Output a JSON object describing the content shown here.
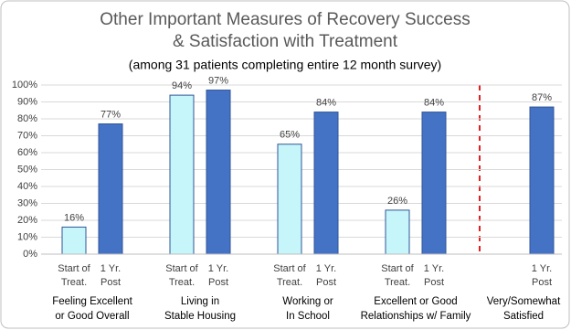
{
  "chart_data": {
    "type": "bar",
    "title": "Other Important Measures of Recovery Success & Satisfaction with Treatment",
    "subtitle": "(among 31 patients completing entire 12 month survey)",
    "categories": [
      "Feeling Excellent or Good Overall",
      "Living in Stable Housing",
      "Working or In School",
      "Excellent or Good Relationships w/ Family",
      "Very/Somewhat Satisfied"
    ],
    "series": [
      {
        "name": "Start of Treat.",
        "color": "#c6f5fa",
        "values": [
          16,
          94,
          65,
          26,
          null
        ],
        "value_labels": [
          "16%",
          "94%",
          "65%",
          "26%",
          null
        ]
      },
      {
        "name": "1 Yr. Post",
        "color": "#4472c4",
        "values": [
          77,
          97,
          84,
          84,
          87
        ],
        "value_labels": [
          "77%",
          "97%",
          "84%",
          "84%",
          "87%"
        ]
      }
    ],
    "ylim": [
      0,
      100
    ],
    "yticks": [
      {
        "value": 0,
        "label": "0%"
      },
      {
        "value": 10,
        "label": "10%"
      },
      {
        "value": 20,
        "label": "20%"
      },
      {
        "value": 30,
        "label": "30%"
      },
      {
        "value": 40,
        "label": "40%"
      },
      {
        "value": 50,
        "label": "50%"
      },
      {
        "value": 60,
        "label": "60%"
      },
      {
        "value": 70,
        "label": "70%"
      },
      {
        "value": 80,
        "label": "80%"
      },
      {
        "value": 90,
        "label": "90%"
      },
      {
        "value": 100,
        "label": "100%"
      }
    ],
    "grid": true
  }
}
